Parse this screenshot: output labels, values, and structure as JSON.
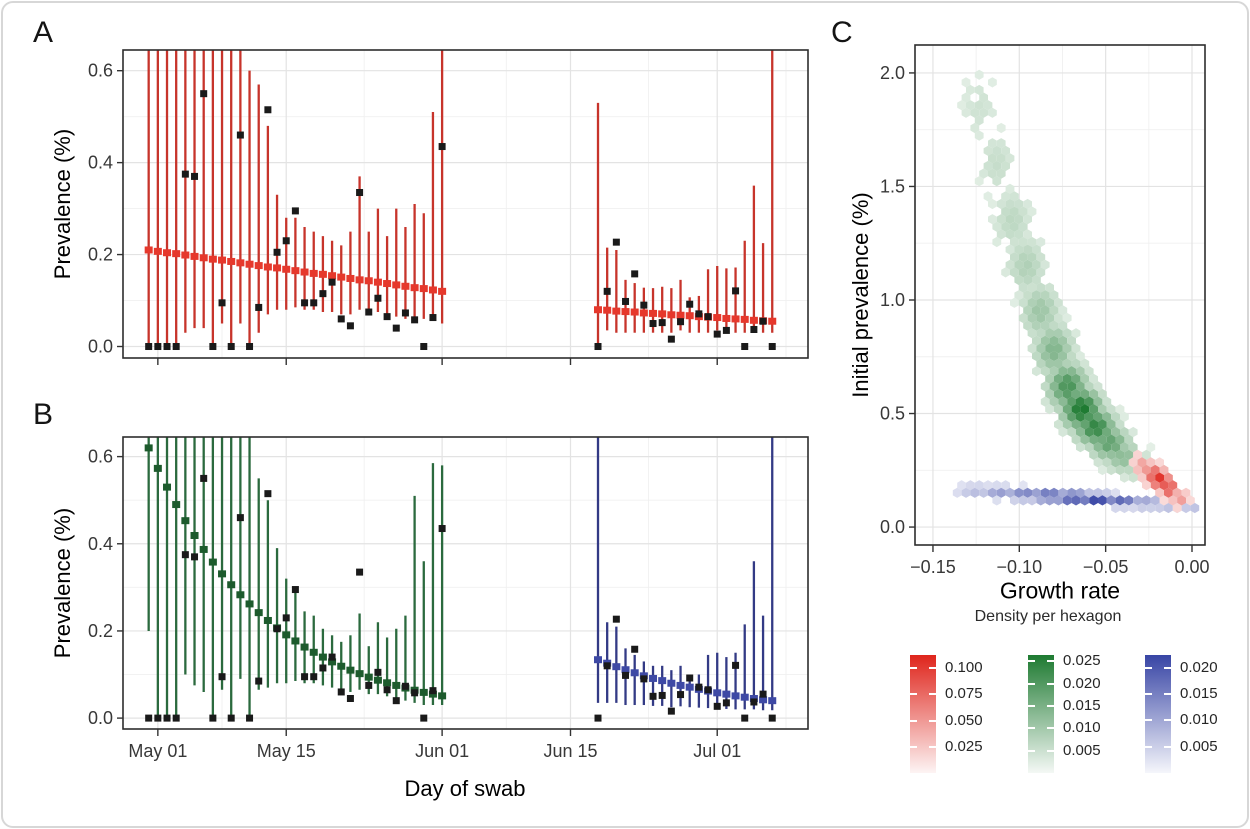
{
  "chart_data": [
    {
      "panel": "A",
      "type": "errorbar-timeseries",
      "ylabel": "Prevalence (%)",
      "xlabel": "",
      "x_axis_labels_shown": false,
      "yticks": [
        "0.0",
        "0.2",
        "0.4",
        "0.6"
      ],
      "ytick_values": [
        0,
        0.2,
        0.4,
        0.6
      ],
      "xtick_labels": [
        "May 01",
        "May 15",
        "Jun 01",
        "Jun 15",
        "Jul 01"
      ],
      "xtick_days": [
        1,
        15,
        32,
        46,
        62
      ],
      "x_day0_date": "Apr 30",
      "ylim": [
        0,
        0.62
      ],
      "grid": true,
      "observed_color": "#1A1A1A",
      "segments": [
        {
          "name": "constant-model-fit-may",
          "start": 0,
          "bar_color": "#C7342B",
          "square_color": "#E6382C",
          "fit": [
            0.21,
            0.207,
            0.204,
            0.202,
            0.199,
            0.196,
            0.193,
            0.19,
            0.188,
            0.185,
            0.182,
            0.179,
            0.176,
            0.173,
            0.171,
            0.168,
            0.165,
            0.162,
            0.159,
            0.157,
            0.154,
            0.151,
            0.148,
            0.145,
            0.143,
            0.14,
            0.137,
            0.134,
            0.131,
            0.128,
            0.126,
            0.123,
            0.12
          ],
          "lo": [
            0,
            0,
            0,
            0,
            0.03,
            0.04,
            0.04,
            0,
            0.05,
            0,
            0.05,
            0,
            0.03,
            0.07,
            0.08,
            0.08,
            0.085,
            0.08,
            0.08,
            0.075,
            0.075,
            0.07,
            0.07,
            0.08,
            0.07,
            0.075,
            0.06,
            0.065,
            0.06,
            0.065,
            0.06,
            0.06,
            0.05
          ],
          "hi": [
            0.7,
            0.7,
            0.7,
            0.7,
            0.7,
            0.7,
            0.7,
            0.7,
            0.7,
            0.7,
            0.7,
            0.6,
            0.57,
            0.48,
            0.33,
            0.28,
            0.28,
            0.26,
            0.25,
            0.24,
            0.23,
            0.22,
            0.25,
            0.37,
            0.25,
            0.3,
            0.24,
            0.3,
            0.26,
            0.31,
            0.29,
            0.51,
            0.7
          ]
        },
        {
          "name": "constant-model-fit-june-july",
          "start": 49,
          "bar_color": "#C7342B",
          "square_color": "#E6382C",
          "fit": [
            0.08,
            0.079,
            0.077,
            0.076,
            0.075,
            0.073,
            0.072,
            0.071,
            0.069,
            0.068,
            0.067,
            0.065,
            0.064,
            0.063,
            0.061,
            0.06,
            0.059,
            0.057,
            0.056,
            0.055
          ],
          "lo": [
            0,
            0.035,
            0.03,
            0.03,
            0.03,
            0.03,
            0.03,
            0.03,
            0.03,
            0.035,
            0.03,
            0.03,
            0.03,
            0.035,
            0.03,
            0.03,
            0.03,
            0.035,
            0.03,
            0.03
          ],
          "hi": [
            0.53,
            0.215,
            0.21,
            0.145,
            0.138,
            0.128,
            0.127,
            0.13,
            0.127,
            0.145,
            0.107,
            0.11,
            0.168,
            0.175,
            0.17,
            0.172,
            0.23,
            0.35,
            0.225,
            0.7
          ]
        }
      ],
      "obs_days": [
        0,
        1,
        2,
        3,
        4,
        5,
        6,
        7,
        8,
        9,
        10,
        11,
        12,
        13,
        14,
        15,
        16,
        17,
        18,
        19,
        20,
        21,
        22,
        23,
        24,
        25,
        26,
        27,
        28,
        29,
        30,
        31,
        32,
        49,
        50,
        51,
        52,
        53,
        54,
        55,
        56,
        57,
        58,
        59,
        60,
        61,
        62,
        63,
        64,
        65,
        66,
        67,
        68
      ],
      "obs_values": [
        0,
        0,
        0,
        0,
        0.375,
        0.37,
        0.55,
        0,
        0.095,
        0,
        0.46,
        0,
        0.085,
        0.515,
        0.205,
        0.23,
        0.295,
        0.095,
        0.095,
        0.115,
        0.14,
        0.06,
        0.045,
        0.335,
        0.075,
        0.105,
        0.065,
        0.04,
        0.073,
        0.058,
        0,
        0.063,
        0.435,
        0,
        0.12,
        0.227,
        0.098,
        0.158,
        0.09,
        0.05,
        0.052,
        0.016,
        0.054,
        0.092,
        0.071,
        0.065,
        0.027,
        0.035,
        0.121,
        0,
        0.037,
        0.055,
        0
      ]
    },
    {
      "panel": "B",
      "type": "errorbar-timeseries",
      "ylabel": "Prevalence (%)",
      "xlabel": "Day of swab",
      "x_axis_labels_shown": true,
      "yticks": [
        "0.0",
        "0.2",
        "0.4",
        "0.6"
      ],
      "ytick_values": [
        0,
        0.2,
        0.4,
        0.6
      ],
      "xtick_labels": [
        "May 01",
        "May 15",
        "Jun 01",
        "Jun 15",
        "Jul 01"
      ],
      "xtick_days": [
        1,
        15,
        32,
        46,
        62
      ],
      "x_day0_date": "Apr 30",
      "ylim": [
        0,
        0.62
      ],
      "grid": true,
      "observed_color": "#1A1A1A",
      "segments": [
        {
          "name": "exp-decline-fit-may",
          "start": 0,
          "bar_color": "#2B6A3E",
          "square_color": "#1D5B2D",
          "fit": [
            0.62,
            0.573,
            0.53,
            0.49,
            0.453,
            0.419,
            0.387,
            0.358,
            0.331,
            0.306,
            0.283,
            0.262,
            0.242,
            0.224,
            0.207,
            0.191,
            0.177,
            0.163,
            0.151,
            0.14,
            0.129,
            0.119,
            0.11,
            0.102,
            0.094,
            0.087,
            0.081,
            0.075,
            0.069,
            0.064,
            0.059,
            0.055,
            0.051
          ],
          "lo": [
            0.2,
            0,
            0,
            0,
            0.1,
            0.075,
            0.06,
            0,
            0.065,
            0,
            0.09,
            0,
            0.065,
            0.07,
            0.08,
            0.08,
            0.085,
            0.08,
            0.08,
            0.075,
            0.07,
            0.065,
            0.06,
            0.065,
            0.055,
            0.055,
            0.05,
            0.045,
            0.04,
            0.035,
            0.03,
            0.03,
            0.03
          ],
          "hi": [
            0.7,
            0.7,
            0.7,
            0.7,
            0.7,
            0.7,
            0.7,
            0.7,
            0.7,
            0.7,
            0.7,
            0.7,
            0.55,
            0.5,
            0.39,
            0.32,
            0.29,
            0.245,
            0.235,
            0.205,
            0.19,
            0.175,
            0.19,
            0.24,
            0.165,
            0.22,
            0.185,
            0.205,
            0.235,
            0.51,
            0.36,
            0.585,
            0.58
          ]
        },
        {
          "name": "exp-decline-fit-june-july",
          "start": 49,
          "bar_color": "#333A85",
          "square_color": "#3E49A5",
          "fit": [
            0.134,
            0.126,
            0.118,
            0.111,
            0.104,
            0.097,
            0.091,
            0.086,
            0.08,
            0.075,
            0.071,
            0.066,
            0.062,
            0.058,
            0.055,
            0.051,
            0.048,
            0.045,
            0.042,
            0.04
          ],
          "lo": [
            0.035,
            0.035,
            0.035,
            0.03,
            0.03,
            0.03,
            0.028,
            0.028,
            0.025,
            0.027,
            0.025,
            0.024,
            0.023,
            0.022,
            0.021,
            0.02,
            0.02,
            0.02,
            0.018,
            0.018
          ],
          "hi": [
            0.7,
            0.22,
            0.21,
            0.16,
            0.145,
            0.13,
            0.12,
            0.12,
            0.11,
            0.12,
            0.1,
            0.1,
            0.145,
            0.15,
            0.14,
            0.15,
            0.215,
            0.36,
            0.235,
            0.7
          ]
        }
      ],
      "obs_days": [
        0,
        1,
        2,
        3,
        4,
        5,
        6,
        7,
        8,
        9,
        10,
        11,
        12,
        13,
        14,
        15,
        16,
        17,
        18,
        19,
        20,
        21,
        22,
        23,
        24,
        25,
        26,
        27,
        28,
        29,
        30,
        31,
        32,
        49,
        50,
        51,
        52,
        53,
        54,
        55,
        56,
        57,
        58,
        59,
        60,
        61,
        62,
        63,
        64,
        65,
        66,
        67,
        68
      ],
      "obs_values": [
        0,
        0,
        0,
        0,
        0.375,
        0.37,
        0.55,
        0,
        0.095,
        0,
        0.46,
        0,
        0.085,
        0.515,
        0.205,
        0.23,
        0.295,
        0.095,
        0.095,
        0.115,
        0.14,
        0.06,
        0.045,
        0.335,
        0.075,
        0.105,
        0.065,
        0.04,
        0.073,
        0.058,
        0,
        0.063,
        0.435,
        0,
        0.12,
        0.227,
        0.098,
        0.158,
        0.09,
        0.05,
        0.052,
        0.016,
        0.054,
        0.092,
        0.071,
        0.065,
        0.027,
        0.035,
        0.121,
        0,
        0.037,
        0.055,
        0
      ]
    },
    {
      "panel": "C",
      "type": "hexbin-density",
      "xlabel": "Growth rate",
      "ylabel": "Initial prevalence (%)",
      "legend_title": "Density per hexagon",
      "xticks": [
        "−0.15",
        "−0.10",
        "−0.05",
        "0.00"
      ],
      "xtick_values": [
        -0.15,
        -0.1,
        -0.05,
        0
      ],
      "yticks": [
        "0.0",
        "0.5",
        "1.0",
        "1.5",
        "2.0"
      ],
      "ytick_values": [
        0,
        0.5,
        1,
        1.5,
        2
      ],
      "xlim": [
        -0.16,
        0.008
      ],
      "ylim": [
        0,
        2.1
      ],
      "grid": true,
      "clusters": [
        {
          "name": "red-posterior-constant-model",
          "color": "#DF251C",
          "max_density": 0.1,
          "sx": 0.0055,
          "path": [
            [
              -0.029,
              0.275
            ],
            [
              -0.023,
              0.235
            ],
            [
              -0.018,
              0.205
            ],
            [
              -0.013,
              0.17
            ],
            [
              -0.007,
              0.125
            ]
          ],
          "w": [
            0.4,
            0.75,
            1,
            0.8,
            0.45
          ],
          "sy": [
            0.05,
            0.047,
            0.045,
            0.042,
            0.04
          ]
        },
        {
          "name": "green-posterior-may-decline",
          "color": "#1E7A31",
          "max_density": 0.025,
          "sx": 0.012,
          "path": [
            [
              -0.123,
              1.85
            ],
            [
              -0.113,
              1.6
            ],
            [
              -0.104,
              1.35
            ],
            [
              -0.096,
              1.15
            ],
            [
              -0.088,
              0.95
            ],
            [
              -0.08,
              0.78
            ],
            [
              -0.072,
              0.62
            ],
            [
              -0.064,
              0.52
            ],
            [
              -0.056,
              0.44
            ],
            [
              -0.048,
              0.37
            ],
            [
              -0.04,
              0.31
            ],
            [
              -0.032,
              0.27
            ],
            [
              -0.024,
              0.24
            ]
          ],
          "w": [
            0.18,
            0.22,
            0.27,
            0.33,
            0.42,
            0.55,
            0.8,
            1,
            0.9,
            0.7,
            0.5,
            0.33,
            0.22
          ],
          "sy": [
            0.17,
            0.16,
            0.15,
            0.14,
            0.13,
            0.12,
            0.105,
            0.095,
            0.085,
            0.08,
            0.075,
            0.07,
            0.065
          ]
        },
        {
          "name": "blue-posterior-june-decline",
          "color": "#3845A5",
          "max_density": 0.02,
          "sx": 0.012,
          "path": [
            [
              -0.125,
              0.16
            ],
            [
              -0.111,
              0.152
            ],
            [
              -0.097,
              0.145
            ],
            [
              -0.083,
              0.138
            ],
            [
              -0.069,
              0.13
            ],
            [
              -0.055,
              0.122
            ],
            [
              -0.041,
              0.114
            ],
            [
              -0.027,
              0.106
            ],
            [
              -0.013,
              0.097
            ],
            [
              0.001,
              0.088
            ]
          ],
          "w": [
            0.35,
            0.5,
            0.65,
            0.85,
            1,
            1,
            0.8,
            0.55,
            0.4,
            0.3
          ],
          "sy": [
            0.03,
            0.03,
            0.029,
            0.028,
            0.027,
            0.026,
            0.025,
            0.024,
            0.024,
            0.023
          ]
        }
      ],
      "legend": {
        "title": "Density per hexagon",
        "position": "bottom-right",
        "bars": [
          {
            "name": "red",
            "color": "#DF251C",
            "tick_labels": [
              "0.100",
              "0.075",
              "0.050",
              "0.025"
            ],
            "tick_values": [
              0.1,
              0.075,
              0.05,
              0.025
            ],
            "scale_max": 0.1125
          },
          {
            "name": "green",
            "color": "#1E7A31",
            "tick_labels": [
              "0.025",
              "0.020",
              "0.015",
              "0.010",
              "0.005"
            ],
            "tick_values": [
              0.025,
              0.02,
              0.015,
              0.01,
              0.005
            ],
            "scale_max": 0.0264
          },
          {
            "name": "blue",
            "color": "#3845A5",
            "tick_labels": [
              "0.020",
              "0.015",
              "0.010",
              "0.005"
            ],
            "tick_values": [
              0.02,
              0.015,
              0.01,
              0.005
            ],
            "scale_max": 0.0224
          }
        ]
      }
    }
  ]
}
